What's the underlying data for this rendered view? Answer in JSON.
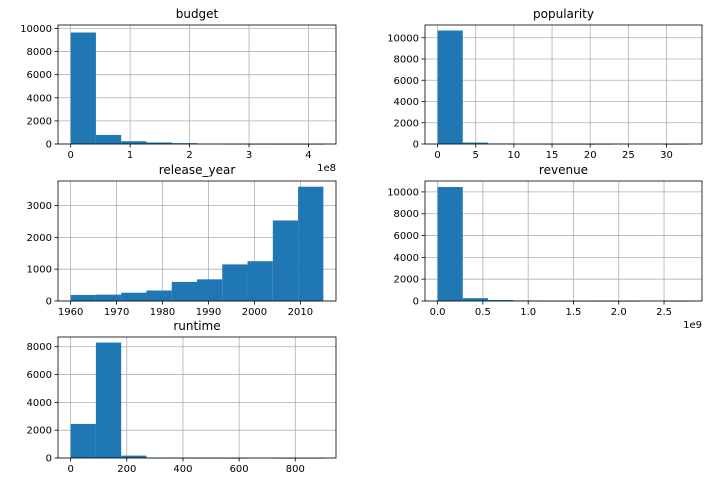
{
  "chart_data": [
    {
      "type": "bar",
      "title": "budget",
      "x_offset_label": "1e8",
      "bin_edges": [
        0,
        0.425,
        0.85,
        1.275,
        1.7,
        2.125,
        2.55,
        2.975,
        3.4,
        3.825,
        4.25
      ],
      "values": [
        9650,
        780,
        240,
        130,
        70,
        25,
        8,
        3,
        2,
        1
      ],
      "xlim": [
        -0.2125,
        4.4625
      ],
      "ylim": [
        0,
        10300
      ],
      "xticks": [
        0,
        1,
        2,
        3,
        4
      ],
      "yticks": [
        0,
        2000,
        4000,
        6000,
        8000,
        10000
      ],
      "grid": true
    },
    {
      "type": "bar",
      "title": "popularity",
      "x_offset_label": "",
      "bin_edges": [
        0,
        3.3,
        6.6,
        9.9,
        13.2,
        16.5,
        19.8,
        23.1,
        26.4,
        29.7,
        33.0
      ],
      "values": [
        10680,
        130,
        50,
        10,
        3,
        2,
        1,
        0,
        0,
        1
      ],
      "xlim": [
        -1.65,
        34.65
      ],
      "ylim": [
        0,
        11200
      ],
      "xticks": [
        0,
        5,
        10,
        15,
        20,
        25,
        30
      ],
      "yticks": [
        0,
        2000,
        4000,
        6000,
        8000,
        10000
      ],
      "grid": true
    },
    {
      "type": "bar",
      "title": "release_year",
      "x_offset_label": "",
      "bin_edges": [
        1960,
        1965.5,
        1971,
        1976.5,
        1982,
        1987.5,
        1993,
        1998.5,
        2004,
        2009.5,
        2015
      ],
      "values": [
        190,
        200,
        260,
        330,
        600,
        680,
        1150,
        1250,
        2530,
        3590
      ],
      "xlim": [
        1957.25,
        2017.75
      ],
      "ylim": [
        0,
        3770
      ],
      "xticks": [
        1960,
        1970,
        1980,
        1990,
        2000,
        2010
      ],
      "yticks": [
        0,
        1000,
        2000,
        3000
      ],
      "grid": true
    },
    {
      "type": "bar",
      "title": "revenue",
      "x_offset_label": "1e9",
      "bin_edges": [
        0,
        0.278,
        0.556,
        0.834,
        1.112,
        1.39,
        1.668,
        1.946,
        2.224,
        2.502,
        2.78
      ],
      "values": [
        10450,
        260,
        90,
        50,
        8,
        4,
        2,
        1,
        0,
        1
      ],
      "xlim": [
        -0.139,
        2.919
      ],
      "ylim": [
        0,
        11000
      ],
      "xticks": [
        0.0,
        0.5,
        1.0,
        1.5,
        2.0,
        2.5
      ],
      "ytick_format": "decimal1",
      "yticks": [
        0,
        2000,
        4000,
        6000,
        8000,
        10000
      ],
      "grid": true
    },
    {
      "type": "bar",
      "title": "runtime",
      "x_offset_label": "",
      "bin_edges": [
        0,
        90,
        180,
        270,
        360,
        450,
        540,
        630,
        720,
        810,
        900
      ],
      "values": [
        2450,
        8300,
        170,
        20,
        5,
        2,
        1,
        0,
        1,
        1
      ],
      "xlim": [
        -45,
        945
      ],
      "ylim": [
        0,
        8700
      ],
      "xticks": [
        0,
        200,
        400,
        600,
        800
      ],
      "yticks": [
        0,
        2000,
        4000,
        6000,
        8000
      ],
      "grid": true
    }
  ],
  "colors": {
    "bar": "#1f77b4",
    "grid": "#b0b0b0",
    "background": "#ffffff"
  }
}
